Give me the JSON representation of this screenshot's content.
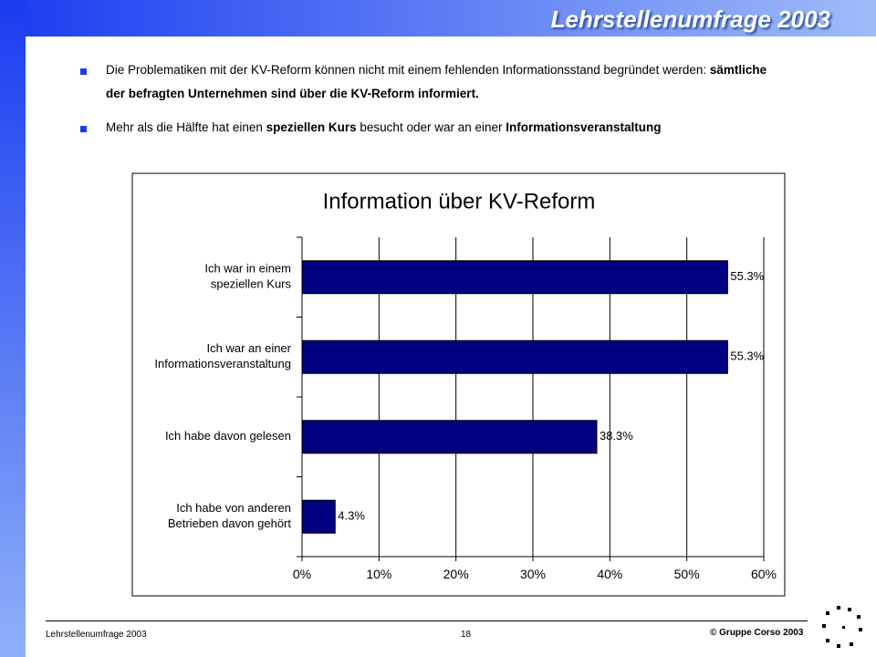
{
  "header": {
    "title": "Lehrstellenumfrage 2003"
  },
  "bullets": [
    {
      "segments": [
        {
          "text": "Die Problematiken mit der KV-Reform können nicht mit einem fehlenden Informationsstand begründet werden: ",
          "bold": false
        },
        {
          "text": "sämtliche der befragten Unternehmen sind über die KV-Reform informiert.",
          "bold": true
        }
      ]
    },
    {
      "segments": [
        {
          "text": "Mehr als die Hälfte hat einen ",
          "bold": false
        },
        {
          "text": "speziellen Kurs",
          "bold": true
        },
        {
          "text": " besucht oder war an einer ",
          "bold": false
        },
        {
          "text": "Informationsveranstaltung",
          "bold": true
        }
      ]
    }
  ],
  "chart_data": {
    "type": "hbar",
    "title": "Information über KV-Reform",
    "categories": [
      [
        "Ich war in einem",
        "speziellen Kurs"
      ],
      [
        "Ich war an einer",
        "Informationsveranstaltung"
      ],
      [
        "Ich habe davon gelesen"
      ],
      [
        "Ich habe von anderen",
        "Betrieben davon gehört"
      ]
    ],
    "values": [
      55.3,
      55.3,
      38.3,
      4.3
    ],
    "value_labels": [
      "55.3%",
      "55.3%",
      "38.3%",
      "4.3%"
    ],
    "color": "#000080",
    "xlim": [
      0,
      60
    ],
    "xticks": [
      {
        "value": 0,
        "label": "0%"
      },
      {
        "value": 10,
        "label": "10%"
      },
      {
        "value": 20,
        "label": "20%"
      },
      {
        "value": 30,
        "label": "30%"
      },
      {
        "value": 40,
        "label": "40%"
      },
      {
        "value": 50,
        "label": "50%"
      },
      {
        "value": 60,
        "label": "60%"
      }
    ],
    "grid": true
  },
  "footer": {
    "left": "Lehrstellenumfrage 2003",
    "page": "18",
    "right": "© Gruppe Corso 2003"
  }
}
